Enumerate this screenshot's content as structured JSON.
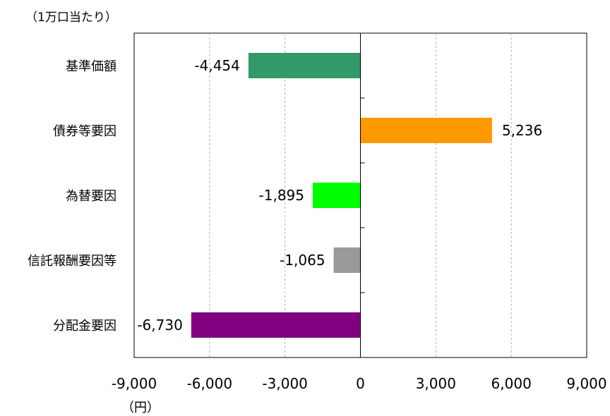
{
  "unit_note": "（1万口当たり）",
  "chart_data": {
    "type": "bar",
    "orientation": "horizontal",
    "categories": [
      "基準価額",
      "債券等要因",
      "為替要因",
      "信託報酬要因等",
      "分配金要因"
    ],
    "values": [
      -4454,
      5236,
      -1895,
      -1065,
      -6730
    ],
    "value_labels": [
      "-4,454",
      "5,236",
      "-1,895",
      "-1,065",
      "-6,730"
    ],
    "colors": [
      "#339966",
      "#FF9900",
      "#00FF00",
      "#999999",
      "#800080"
    ],
    "xlim": [
      -9000,
      9000
    ],
    "xticks": [
      -9000,
      -6000,
      -3000,
      0,
      3000,
      6000,
      9000
    ],
    "xtick_labels": [
      "-9,000",
      "-6,000",
      "-3,000",
      "0",
      "3,000",
      "6,000",
      "9,000"
    ],
    "xlabel": "（円）",
    "grid": "vertical-dashed"
  }
}
